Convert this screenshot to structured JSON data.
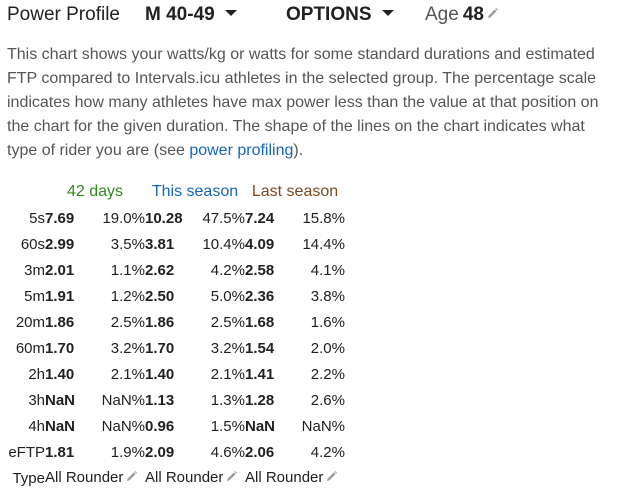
{
  "header": {
    "title": "Power Profile",
    "age_group": "M 40-49",
    "options_label": "OPTIONS",
    "age_label": "Age",
    "age_value": "48"
  },
  "description": {
    "text_before_link": "This chart shows your watts/kg or watts for some standard durations and estimated FTP compared to Intervals.icu athletes in the selected group. The percentage scale indicates how many athletes have max power less than the value at that position on the chart for the given duration. The shape of the lines on the chart indicates what type of rider you are (see ",
    "link_text": "power profiling",
    "text_after_link": ")."
  },
  "table": {
    "groups": [
      "42 days",
      "This season",
      "Last season"
    ],
    "group_colors": [
      "#2e8b1e",
      "#1565c0",
      "#7b4a23"
    ],
    "rows": [
      {
        "label": "5s",
        "cells": [
          [
            "7.69",
            "19.0%"
          ],
          [
            "10.28",
            "47.5%"
          ],
          [
            "7.24",
            "15.8%"
          ]
        ]
      },
      {
        "label": "60s",
        "cells": [
          [
            "2.99",
            "3.5%"
          ],
          [
            "3.81",
            "10.4%"
          ],
          [
            "4.09",
            "14.4%"
          ]
        ]
      },
      {
        "label": "3m",
        "cells": [
          [
            "2.01",
            "1.1%"
          ],
          [
            "2.62",
            "4.2%"
          ],
          [
            "2.58",
            "4.1%"
          ]
        ]
      },
      {
        "label": "5m",
        "cells": [
          [
            "1.91",
            "1.2%"
          ],
          [
            "2.50",
            "5.0%"
          ],
          [
            "2.36",
            "3.8%"
          ]
        ]
      },
      {
        "label": "20m",
        "cells": [
          [
            "1.86",
            "2.5%"
          ],
          [
            "1.86",
            "2.5%"
          ],
          [
            "1.68",
            "1.6%"
          ]
        ]
      },
      {
        "label": "60m",
        "cells": [
          [
            "1.70",
            "3.2%"
          ],
          [
            "1.70",
            "3.2%"
          ],
          [
            "1.54",
            "2.0%"
          ]
        ]
      },
      {
        "label": "2h",
        "cells": [
          [
            "1.40",
            "2.1%"
          ],
          [
            "1.40",
            "2.1%"
          ],
          [
            "1.41",
            "2.2%"
          ]
        ]
      },
      {
        "label": "3h",
        "cells": [
          [
            "NaN",
            "NaN%"
          ],
          [
            "1.13",
            "1.3%"
          ],
          [
            "1.28",
            "2.6%"
          ]
        ]
      },
      {
        "label": "4h",
        "cells": [
          [
            "NaN",
            "NaN%"
          ],
          [
            "0.96",
            "1.5%"
          ],
          [
            "NaN",
            "NaN%"
          ]
        ]
      },
      {
        "label": "eFTP",
        "cells": [
          [
            "1.81",
            "1.9%"
          ],
          [
            "2.09",
            "4.6%"
          ],
          [
            "2.06",
            "4.2%"
          ]
        ]
      }
    ],
    "type_row": {
      "label": "Type",
      "values": [
        "All Rounder",
        "All Rounder",
        "All Rounder"
      ]
    }
  },
  "icons": {
    "dropdown": "caret-down-icon",
    "edit": "pencil-icon"
  }
}
